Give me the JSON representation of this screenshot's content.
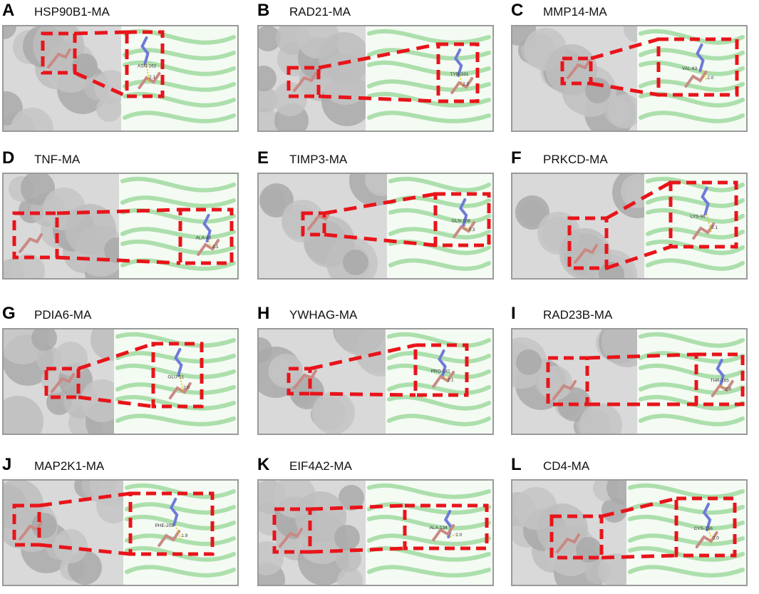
{
  "panels": [
    {
      "letter": "A",
      "title": "HSP90B1-MA",
      "residue": "ASN-162",
      "distance": "2.1"
    },
    {
      "letter": "B",
      "title": "RAD21-MA",
      "residue": "TYR-331",
      "distance": "2.2"
    },
    {
      "letter": "C",
      "title": "MMP14-MA",
      "residue": "VAL-63",
      "distance": "2.0"
    },
    {
      "letter": "D",
      "title": "TNF-MA",
      "residue": "ALA-40",
      "distance": "2.1"
    },
    {
      "letter": "E",
      "title": "TIMP3-MA",
      "residue": "GLN-108",
      "distance": "2.3"
    },
    {
      "letter": "F",
      "title": "PRKCD-MA",
      "residue": "LYS-96",
      "distance": "2.1"
    },
    {
      "letter": "G",
      "title": "PDIA6-MA",
      "residue": "GLU-51",
      "distance": "2.0"
    },
    {
      "letter": "H",
      "title": "YWHAG-MA",
      "residue": "PRO-141",
      "distance": "2.1"
    },
    {
      "letter": "I",
      "title": "RAD23B-MA",
      "residue": "THR-165",
      "distance": "2.0"
    },
    {
      "letter": "J",
      "title": "MAP2K1-MA",
      "residue": "PHE-209",
      "distance": "1.9"
    },
    {
      "letter": "K",
      "title": "EIF4A2-MA",
      "residue": "ALA-134",
      "distance": "2.0"
    },
    {
      "letter": "L",
      "title": "CD4-MA",
      "residue": "CYS-156",
      "distance": "2.0"
    }
  ],
  "colors": {
    "surface": "#b9b9b9",
    "cartoon": "#9ad89a",
    "ligand": "#c98a84",
    "residue": "#6f7bd8",
    "box": "#e8141a"
  }
}
